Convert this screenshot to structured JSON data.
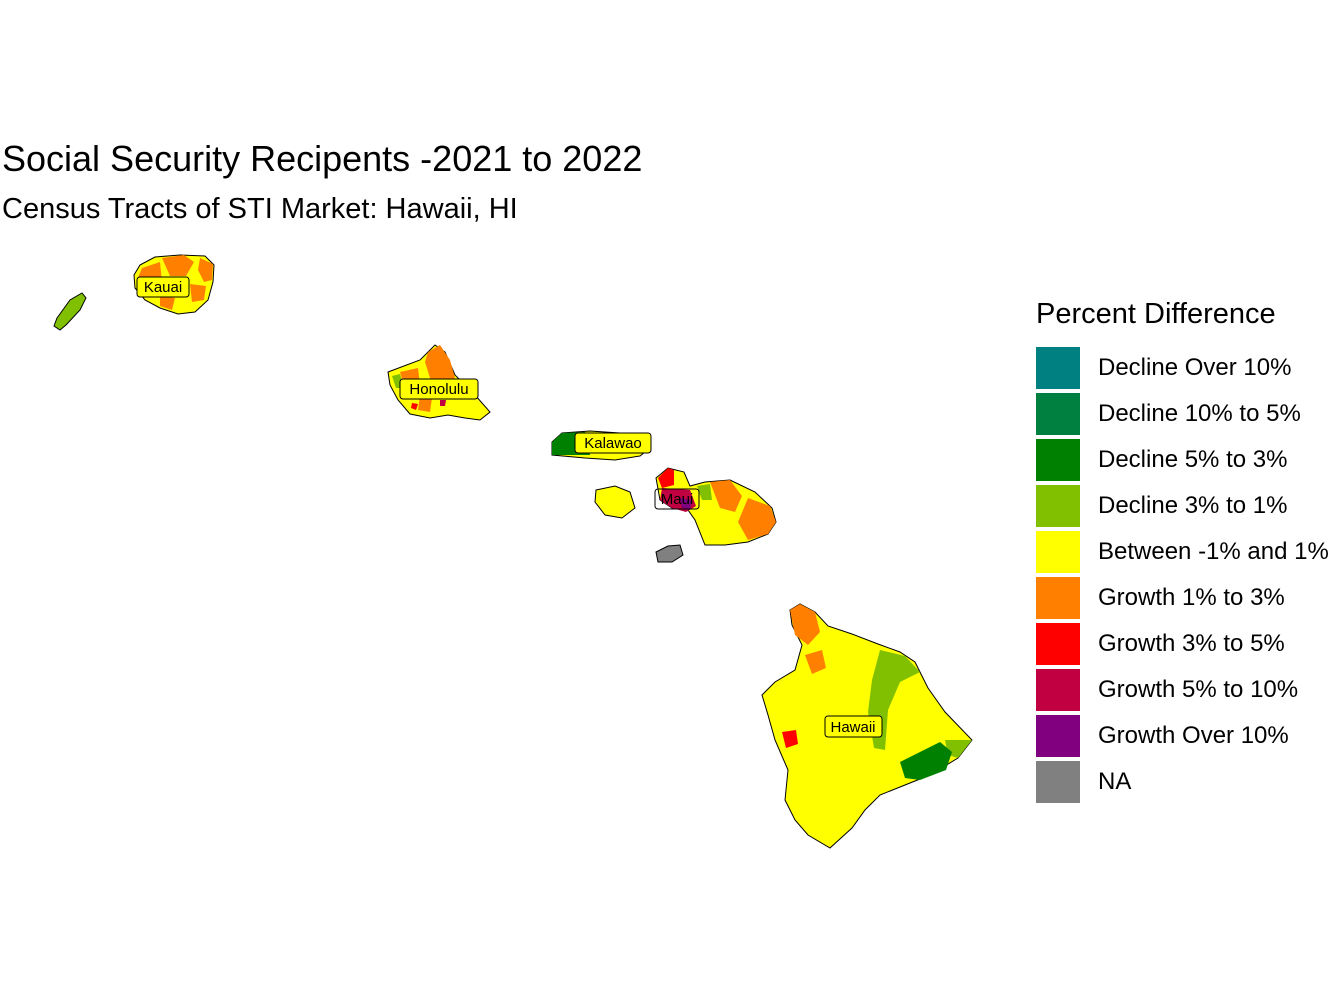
{
  "title": "Social Security Recipents -2021 to 2022",
  "subtitle": "Census Tracts of STI Market: Hawaii, HI",
  "legend": {
    "title": "Percent Difference",
    "items": [
      {
        "label": "Decline Over 10%",
        "color": "#008080"
      },
      {
        "label": "Decline 10% to 5%",
        "color": "#008040"
      },
      {
        "label": "Decline 5% to 3%",
        "color": "#008000"
      },
      {
        "label": "Decline 3% to 1%",
        "color": "#80c000"
      },
      {
        "label": "Between -1% and 1%",
        "color": "#ffff00"
      },
      {
        "label": "Growth 1% to 3%",
        "color": "#ff8000"
      },
      {
        "label": "Growth 3% to 5%",
        "color": "#ff0000"
      },
      {
        "label": "Growth 5% to 10%",
        "color": "#c00040"
      },
      {
        "label": "Growth Over 10%",
        "color": "#800080"
      },
      {
        "label": "NA",
        "color": "#808080"
      }
    ]
  },
  "counties": {
    "kauai": "Kauai",
    "honolulu": "Honolulu",
    "kalawao": "Kalawao",
    "maui": "Maui",
    "hawaii": "Hawaii"
  }
}
